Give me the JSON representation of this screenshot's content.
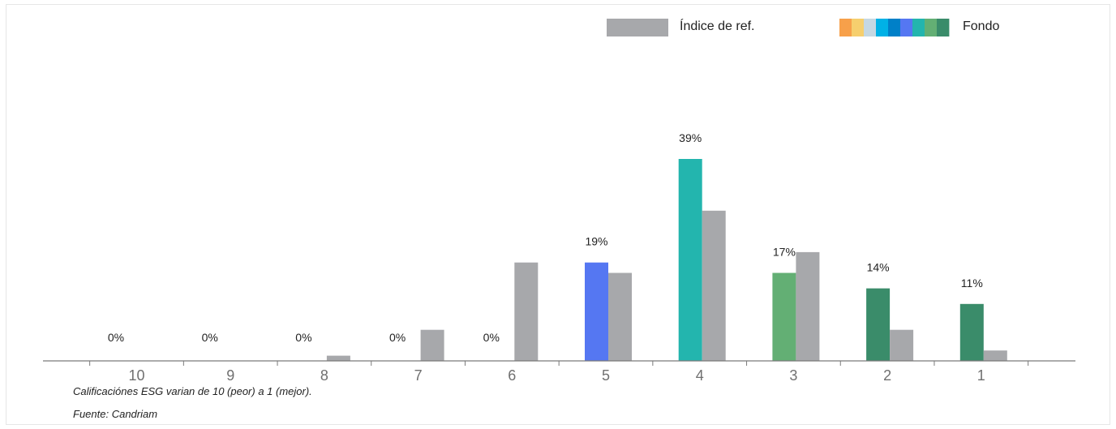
{
  "chart_data": {
    "type": "bar",
    "categories": [
      "10",
      "9",
      "8",
      "7",
      "6",
      "5",
      "4",
      "3",
      "2",
      "1"
    ],
    "series": [
      {
        "name": "Fondo",
        "values": [
          0,
          0,
          0,
          0,
          0,
          19,
          39,
          17,
          14,
          11
        ],
        "labels": [
          "0%",
          "0%",
          "0%",
          "0%",
          "0%",
          "19%",
          "39%",
          "17%",
          "14%",
          "11%"
        ],
        "colors": [
          "#f7a04a",
          "#f6cf6e",
          "#c5d8e3",
          "#00b1e6",
          "#0080c8",
          "#5577f2",
          "#23b5ae",
          "#63af74",
          "#3a8c6a",
          "#3a8c6a"
        ]
      },
      {
        "name": "Índice de ref.",
        "values": [
          0,
          0,
          1,
          6,
          19,
          17,
          29,
          21,
          6,
          2
        ],
        "color": "#a7a8ab"
      }
    ],
    "ylim": [
      0,
      45
    ],
    "grid": false,
    "legend_position": "top-right",
    "legend_swatch_colors": [
      "#f7a04a",
      "#f6cf6e",
      "#c5d8e3",
      "#00b1e6",
      "#0080c8",
      "#5577f2",
      "#23b5ae",
      "#63af74",
      "#3a8c6a"
    ]
  },
  "notes": {
    "scale": "Calificaciónes ESG varian de 10 (peor) a 1 (mejor).",
    "source": "Fuente: Candriam"
  }
}
